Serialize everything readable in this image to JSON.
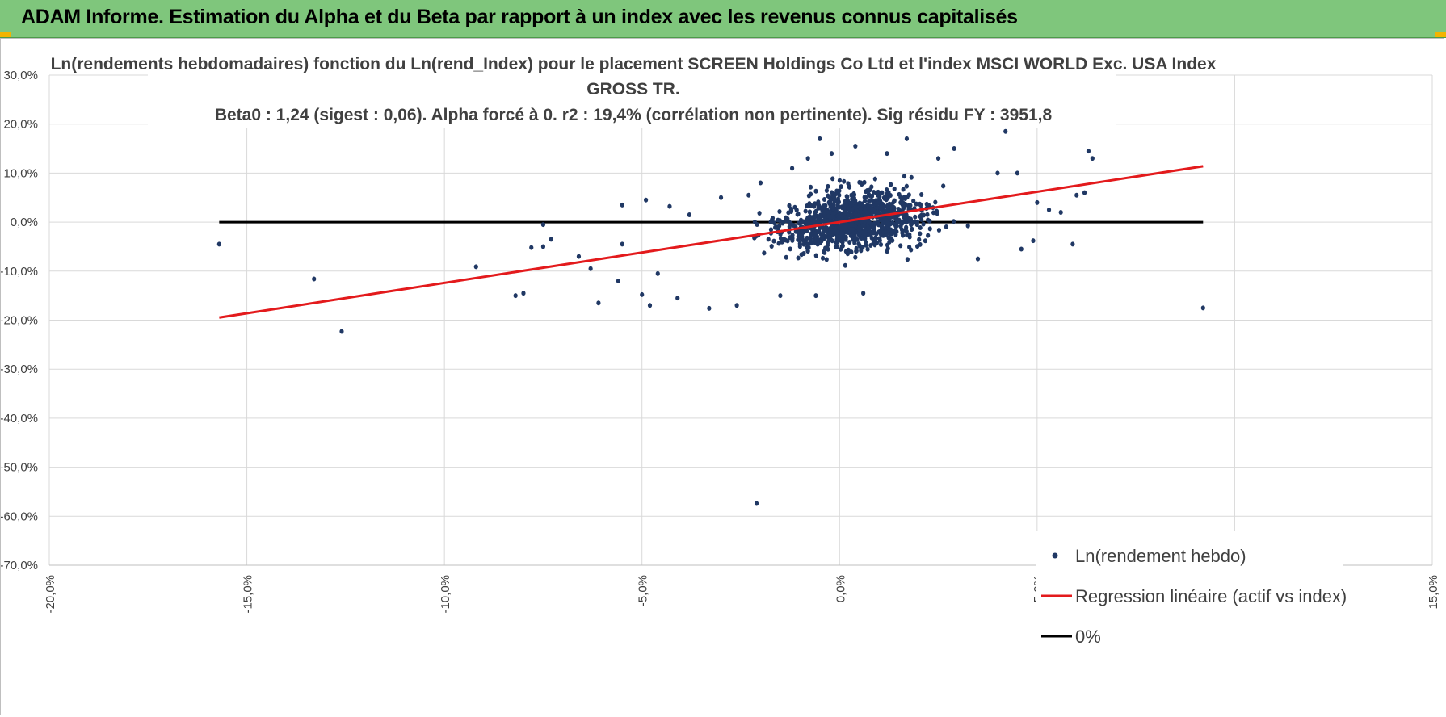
{
  "header": {
    "title": "ADAM Informe. Estimation du Alpha et du Beta par rapport à un index avec les revenus connus capitalisés"
  },
  "colors": {
    "header_bg": "#7fc67c",
    "points": "#203864",
    "regression": "#e31a1c",
    "zero_line": "#000000",
    "grid": "#d9d9d9"
  },
  "chart_data": {
    "type": "scatter",
    "title_lines": [
      "Ln(rendements hebdomadaires) fonction du Ln(rend_Index) pour le placement SCREEN Holdings Co Ltd et l'index MSCI WORLD Exc. USA Index",
      "GROSS TR.",
      "Beta0 : 1,24 (sigest : 0,06). Alpha forcé à 0. r2 : 19,4% (corrélation non pertinente). Sig résidu FY : 3951,8"
    ],
    "xlim": [
      -20,
      15
    ],
    "ylim": [
      -70,
      30
    ],
    "x_ticks": [
      "-20,0%",
      "-15,0%",
      "-10,0%",
      "-5,0%",
      "0,0%",
      "5,0%",
      "10,0%",
      "15,0%"
    ],
    "y_ticks": [
      "30,0%",
      "20,0%",
      "10,0%",
      "0,0%",
      "-10,0%",
      "-20,0%",
      "-30,0%",
      "-40,0%",
      "-50,0%",
      "-60,0%",
      "-70,0%"
    ],
    "grid": true,
    "legend_position": "bottom-right",
    "series": [
      {
        "name": "Ln(rendement hebdo)",
        "kind": "scatter",
        "points": [
          [
            -15.7,
            -4.5
          ],
          [
            -13.3,
            -11.6
          ],
          [
            -12.6,
            -22.3
          ],
          [
            -9.2,
            -9.1
          ],
          [
            -8.2,
            -15.0
          ],
          [
            -8.0,
            -14.5
          ],
          [
            -7.8,
            -5.2
          ],
          [
            -7.5,
            -0.5
          ],
          [
            -7.3,
            -3.5
          ],
          [
            -7.5,
            -5.0
          ],
          [
            -6.6,
            -7.0
          ],
          [
            -6.3,
            -9.5
          ],
          [
            -6.1,
            -16.5
          ],
          [
            -5.6,
            -12.0
          ],
          [
            -5.5,
            3.5
          ],
          [
            -5.5,
            -4.5
          ],
          [
            -5.0,
            -14.8
          ],
          [
            -4.9,
            4.5
          ],
          [
            -4.8,
            -17.0
          ],
          [
            -4.6,
            -10.5
          ],
          [
            -4.3,
            3.2
          ],
          [
            -4.1,
            -15.5
          ],
          [
            -3.8,
            1.5
          ],
          [
            -3.3,
            -17.6
          ],
          [
            -3.0,
            5.0
          ],
          [
            -2.6,
            -17.0
          ],
          [
            -2.3,
            5.5
          ],
          [
            -2.1,
            -57.4
          ],
          [
            -2.0,
            8.0
          ],
          [
            -1.8,
            -3.5
          ],
          [
            -1.5,
            -15.0
          ],
          [
            -1.2,
            11.0
          ],
          [
            -0.8,
            13.0
          ],
          [
            -0.6,
            -15.0
          ],
          [
            -0.5,
            17.0
          ],
          [
            -0.2,
            14.0
          ],
          [
            0.4,
            15.5
          ],
          [
            0.6,
            -14.5
          ],
          [
            1.2,
            14.0
          ],
          [
            1.7,
            17.0
          ],
          [
            2.5,
            13.0
          ],
          [
            2.9,
            15.0
          ],
          [
            3.5,
            -7.5
          ],
          [
            4.0,
            10.0
          ],
          [
            4.2,
            18.5
          ],
          [
            4.5,
            10.0
          ],
          [
            4.6,
            -5.5
          ],
          [
            4.9,
            -3.8
          ],
          [
            5.0,
            4.0
          ],
          [
            5.3,
            2.5
          ],
          [
            5.6,
            2.0
          ],
          [
            5.9,
            -4.5
          ],
          [
            6.0,
            5.5
          ],
          [
            6.2,
            6.0
          ],
          [
            6.3,
            14.5
          ],
          [
            6.4,
            13.0
          ],
          [
            9.2,
            -17.5
          ]
        ]
      },
      {
        "name": "Regression linéaire (actif vs index)",
        "kind": "line",
        "slope": 1.24,
        "x_range": [
          -15.7,
          9.2
        ]
      },
      {
        "name": "0%",
        "kind": "line",
        "y": 0,
        "x_range": [
          -15.7,
          9.2
        ]
      }
    ]
  }
}
